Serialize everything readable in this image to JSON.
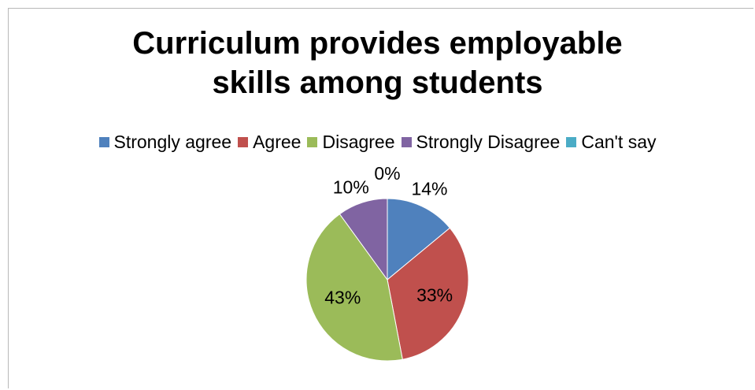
{
  "chart_data": {
    "type": "pie",
    "title_lines": [
      "Curriculum provides employable",
      "skills among students"
    ],
    "categories": [
      "Strongly agree",
      "Agree",
      "Disagree",
      "Strongly Disagree",
      "Can't say"
    ],
    "values": [
      14,
      33,
      43,
      10,
      0
    ],
    "labels": [
      "14%",
      "33%",
      "43%",
      "10%",
      "0%"
    ],
    "colors": [
      "#4f81bd",
      "#c0504d",
      "#9bbb59",
      "#8064a2",
      "#4bacc6"
    ],
    "legend_position": "top"
  }
}
